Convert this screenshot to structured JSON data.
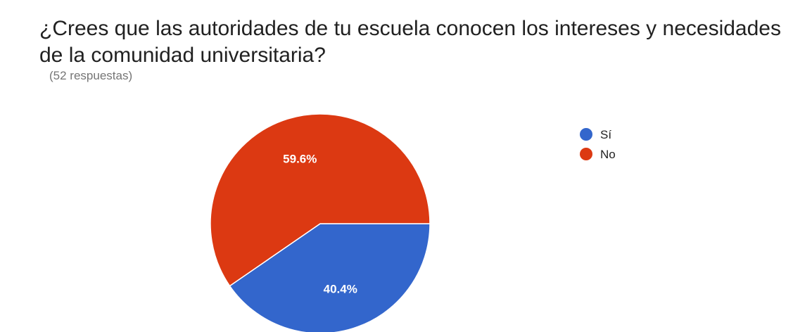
{
  "header": {
    "question": "¿Crees que las autoridades de tu escuela conocen los intereses y necesidades de la comunidad universitaria?",
    "responses": "(52 respuestas)"
  },
  "chart_data": {
    "type": "pie",
    "categories": [
      "Sí",
      "No"
    ],
    "values": [
      40.4,
      59.6
    ],
    "labels": [
      "40.4%",
      "59.6%"
    ],
    "colors": [
      "#3366CC",
      "#DC3912"
    ],
    "legend_position": "right"
  }
}
